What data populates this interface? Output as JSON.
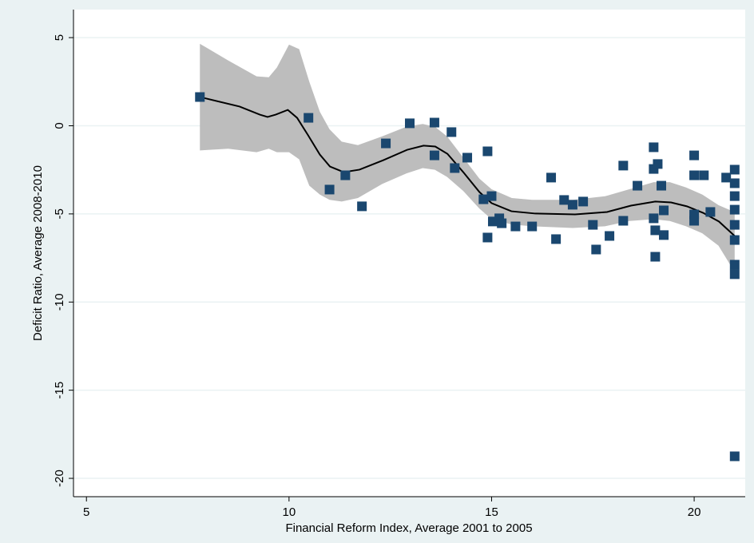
{
  "chart_data": {
    "type": "scatter",
    "xlabel": "Financial Reform Index, Average 2001 to 2005",
    "ylabel": "Deficit Ratio, Average 2008-2010",
    "xlim": [
      4.68,
      21.26
    ],
    "ylim": [
      -21.04,
      6.59
    ],
    "xticks": [
      5,
      10,
      15,
      20
    ],
    "yticks": [
      -20,
      -15,
      -10,
      -5,
      0,
      5
    ],
    "grid": true,
    "band": {
      "color": "#bdbdbd",
      "x": [
        7.8,
        8.5,
        9.2,
        9.5,
        9.7,
        10,
        10.25,
        10.5,
        10.76,
        11.0,
        11.3,
        11.7,
        12.3,
        12.9,
        13.3,
        13.6,
        13.9,
        14.3,
        14.7,
        15,
        15.5,
        16,
        17,
        17.8,
        18.4,
        19,
        19.4,
        19.8,
        20.2,
        20.6,
        21
      ],
      "upper": [
        4.65,
        3.7,
        2.8,
        2.75,
        3.3,
        4.6,
        4.35,
        2.5,
        0.8,
        -0.2,
        -0.9,
        -1.1,
        -0.6,
        -0.05,
        0.1,
        -0.05,
        -0.6,
        -1.8,
        -3,
        -3.6,
        -4.1,
        -4.2,
        -4.2,
        -4.0,
        -3.6,
        -3.2,
        -3.2,
        -3.5,
        -3.9,
        -4.5,
        -4.9
      ],
      "lower": [
        -1.4,
        -1.3,
        -1.5,
        -1.3,
        -1.5,
        -1.5,
        -1.9,
        -3.4,
        -3.9,
        -4.2,
        -4.3,
        -4.1,
        -3.3,
        -2.7,
        -2.4,
        -2.5,
        -2.9,
        -3.7,
        -4.7,
        -5.3,
        -5.6,
        -5.7,
        -5.8,
        -5.7,
        -5.4,
        -5.3,
        -5.4,
        -5.7,
        -6.1,
        -6.8,
        -8.3
      ]
    },
    "fit": {
      "color": "#000000",
      "x": [
        7.8,
        8.78,
        9.28,
        9.47,
        9.67,
        9.97,
        10.2,
        10.46,
        10.76,
        11.01,
        11.35,
        11.74,
        12.33,
        12.92,
        13.32,
        13.61,
        13.91,
        14.3,
        14.7,
        15.0,
        15.49,
        16.08,
        17.06,
        17.85,
        18.44,
        19.04,
        19.43,
        19.82,
        20.22,
        20.61,
        21.0
      ],
      "values": [
        1.63,
        1.09,
        0.63,
        0.5,
        0.63,
        0.9,
        0.45,
        -0.5,
        -1.63,
        -2.31,
        -2.63,
        -2.49,
        -1.95,
        -1.36,
        -1.13,
        -1.18,
        -1.59,
        -2.63,
        -3.76,
        -4.39,
        -4.85,
        -4.98,
        -5.03,
        -4.89,
        -4.53,
        -4.3,
        -4.35,
        -4.57,
        -4.94,
        -5.43,
        -6.25
      ]
    },
    "points": {
      "color": "#1a476f",
      "x": [
        7.8,
        10.48,
        11.0,
        11.39,
        11.8,
        12.39,
        12.98,
        13.59,
        13.59,
        14.01,
        14.09,
        14.4,
        14.8,
        14.9,
        14.9,
        15.0,
        15.03,
        15.19,
        15.25,
        15.59,
        16.0,
        16.47,
        16.59,
        16.79,
        17.0,
        17.26,
        17.5,
        17.58,
        17.91,
        18.25,
        18.25,
        18.6,
        19.0,
        19.0,
        19.1,
        19.0,
        19.04,
        19.04,
        19.19,
        19.25,
        19.25,
        20.0,
        20.0,
        20.0,
        20.0,
        20.24,
        20.4,
        20.79,
        21.0,
        21.0,
        21.0,
        21.0,
        21.0,
        21.0,
        21.0,
        21.0,
        21.0
      ],
      "values": [
        1.63,
        0.45,
        -3.62,
        -2.81,
        -4.57,
        -1.0,
        0.14,
        0.18,
        -1.68,
        -0.36,
        -2.4,
        -1.81,
        -4.17,
        -1.45,
        -6.34,
        -3.99,
        -5.43,
        -5.25,
        -5.53,
        -5.71,
        -5.71,
        -2.94,
        -6.43,
        -4.21,
        -4.48,
        -4.3,
        -5.62,
        -7.02,
        -6.25,
        -2.26,
        -5.39,
        -3.4,
        -1.22,
        -2.45,
        -2.17,
        -5.25,
        -5.93,
        -7.43,
        -3.4,
        -4.8,
        -6.2,
        -1.68,
        -2.81,
        -5.03,
        -5.39,
        -2.81,
        -4.89,
        -2.94,
        -2.49,
        -3.26,
        -3.99,
        -4.76,
        -5.62,
        -6.48,
        -7.88,
        -8.42,
        -18.75
      ]
    }
  }
}
